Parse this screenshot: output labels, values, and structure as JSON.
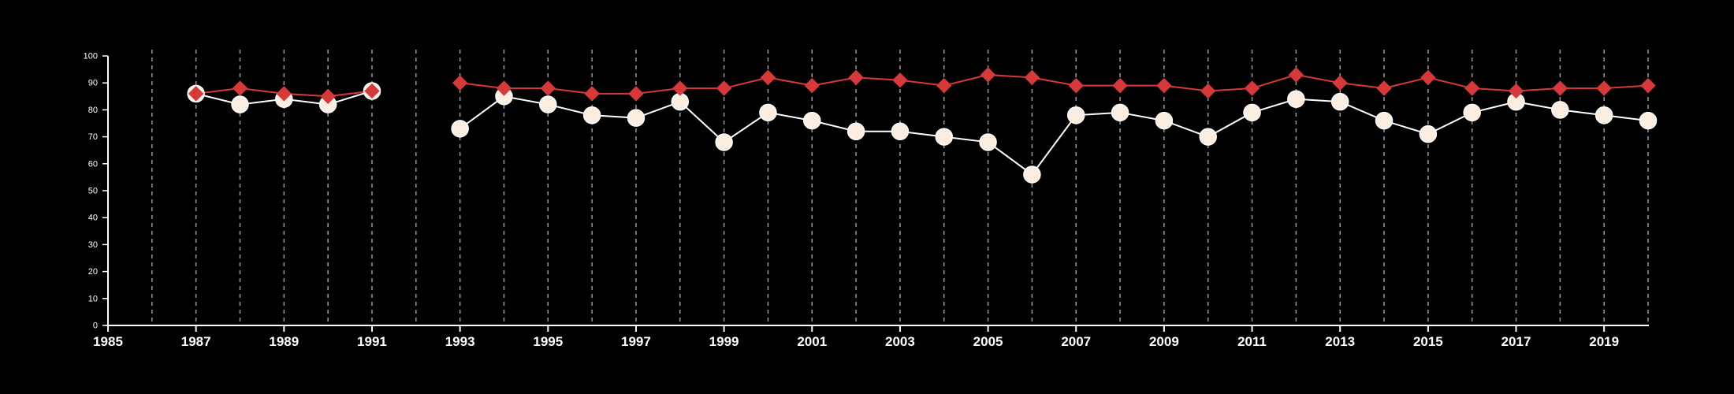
{
  "chart_data": {
    "type": "line",
    "xlim": [
      1985,
      2020
    ],
    "ylim": [
      0,
      100
    ],
    "x_ticks": [
      1985,
      1987,
      1989,
      1991,
      1993,
      1995,
      1997,
      1999,
      2001,
      2003,
      2005,
      2007,
      2009,
      2011,
      2013,
      2015,
      2017,
      2019
    ],
    "x_tick_labels": [
      "1985",
      "1987",
      "1989",
      "1991",
      "1993",
      "1995",
      "1997",
      "1999",
      "2001",
      "2003",
      "2005",
      "2007",
      "2009",
      "2011",
      "2013",
      "2015",
      "2017",
      "2019"
    ],
    "y_ticks": [
      0,
      10,
      20,
      30,
      40,
      50,
      60,
      70,
      80,
      90,
      100
    ],
    "y_tick_labels": [
      "0",
      "10",
      "20",
      "30",
      "40",
      "50",
      "60",
      "70",
      "80",
      "90",
      "100"
    ],
    "vertical_gridlines": [
      1986,
      1987,
      1988,
      1989,
      1990,
      1991,
      1992,
      1993,
      1994,
      1995,
      1996,
      1997,
      1998,
      1999,
      2000,
      2001,
      2002,
      2003,
      2004,
      2005,
      2006,
      2007,
      2008,
      2009,
      2010,
      2011,
      2012,
      2013,
      2014,
      2015,
      2016,
      2017,
      2018,
      2019,
      2020
    ],
    "series": [
      {
        "marker": "circle",
        "color": "#ffffff",
        "fill": "#fbeee0",
        "segments": [
          {
            "x": [
              1987,
              1988,
              1989,
              1990,
              1991
            ],
            "y": [
              86,
              82,
              84,
              82,
              87
            ]
          },
          {
            "x": [
              1993,
              1994,
              1995,
              1996,
              1997,
              1998,
              1999,
              2000,
              2001,
              2002,
              2003,
              2004,
              2005,
              2006,
              2007,
              2008,
              2009,
              2010,
              2011,
              2012,
              2013,
              2014,
              2015,
              2016,
              2017,
              2018,
              2019,
              2020
            ],
            "y": [
              73,
              85,
              82,
              78,
              77,
              83,
              68,
              79,
              76,
              72,
              72,
              70,
              68,
              56,
              78,
              79,
              76,
              70,
              79,
              84,
              83,
              76,
              71,
              79,
              83,
              80,
              78,
              76
            ]
          }
        ]
      },
      {
        "marker": "diamond",
        "color": "#d7393a",
        "fill": "#d7393a",
        "segments": [
          {
            "x": [
              1987,
              1988,
              1989,
              1990,
              1991
            ],
            "y": [
              86,
              88,
              86,
              85,
              87
            ]
          },
          {
            "x": [
              1993,
              1994,
              1995,
              1996,
              1997,
              1998,
              1999,
              2000,
              2001,
              2002,
              2003,
              2004,
              2005,
              2006,
              2007,
              2008,
              2009,
              2010,
              2011,
              2012,
              2013,
              2014,
              2015,
              2016,
              2017,
              2018,
              2019,
              2020
            ],
            "y": [
              90,
              88,
              88,
              86,
              86,
              88,
              88,
              92,
              89,
              92,
              91,
              89,
              93,
              92,
              89,
              89,
              89,
              87,
              88,
              93,
              90,
              88,
              92,
              88,
              87,
              88,
              88,
              89
            ]
          }
        ]
      }
    ]
  }
}
